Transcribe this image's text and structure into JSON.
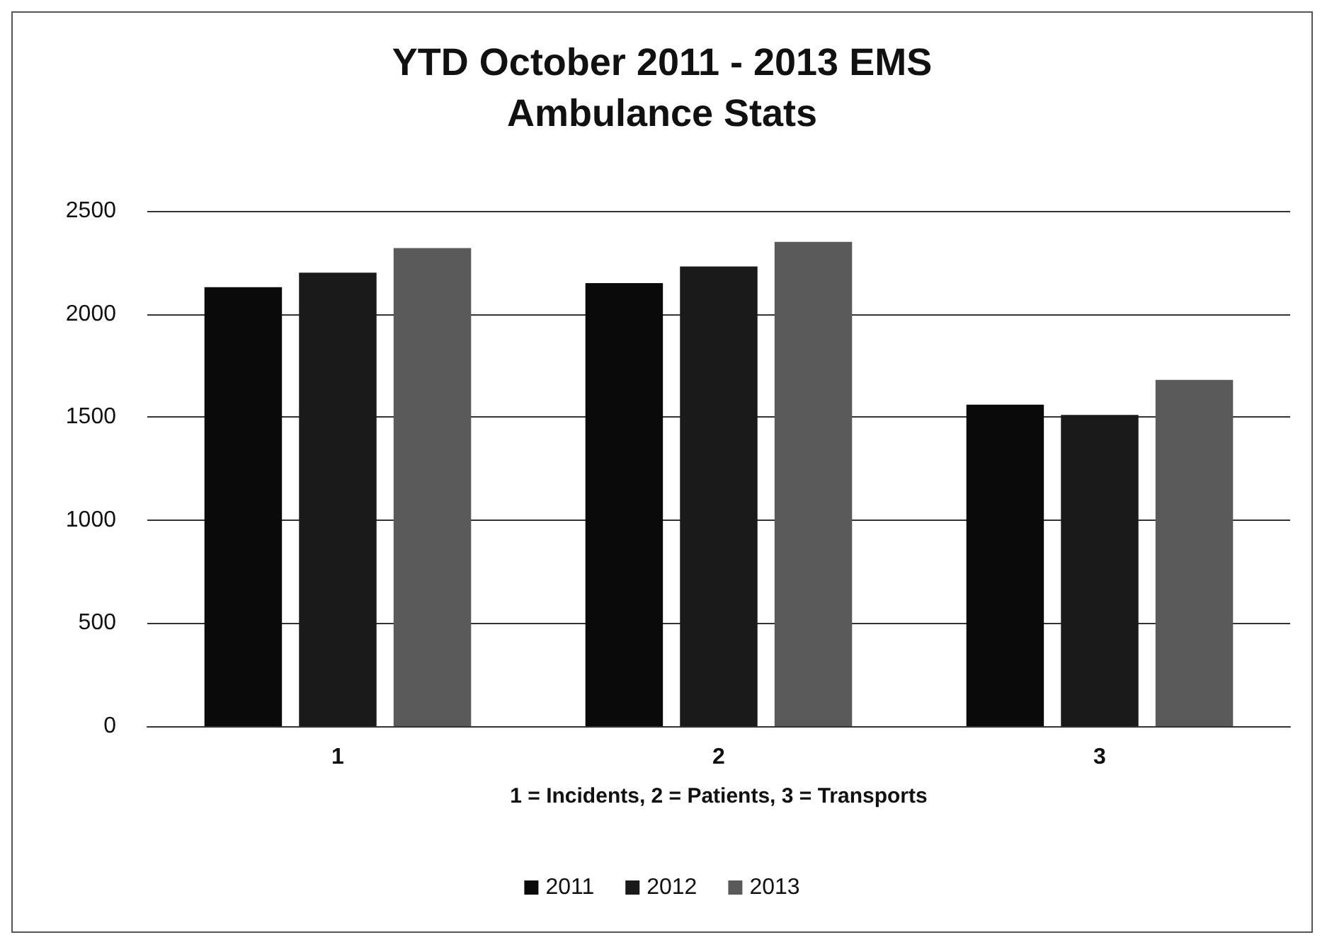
{
  "chart_data": {
    "type": "bar",
    "title": "YTD October 2011 - 2013 EMS\nAmbulance Stats",
    "xlabel": "1 = Incidents, 2 = Patients, 3 = Transports",
    "categories": [
      "1",
      "2",
      "3"
    ],
    "series": [
      {
        "name": "2011",
        "color": "#0a0a0a",
        "values": [
          2130,
          2150,
          1560
        ]
      },
      {
        "name": "2012",
        "color": "#1a1a1a",
        "values": [
          2200,
          2230,
          1510
        ]
      },
      {
        "name": "2013",
        "color": "#5a5a5a",
        "values": [
          2320,
          2350,
          1680
        ]
      }
    ],
    "ylim": [
      0,
      2500
    ],
    "yticks": [
      0,
      500,
      1000,
      1500,
      2000,
      2500
    ],
    "grid": "y",
    "legend": "bottom"
  }
}
